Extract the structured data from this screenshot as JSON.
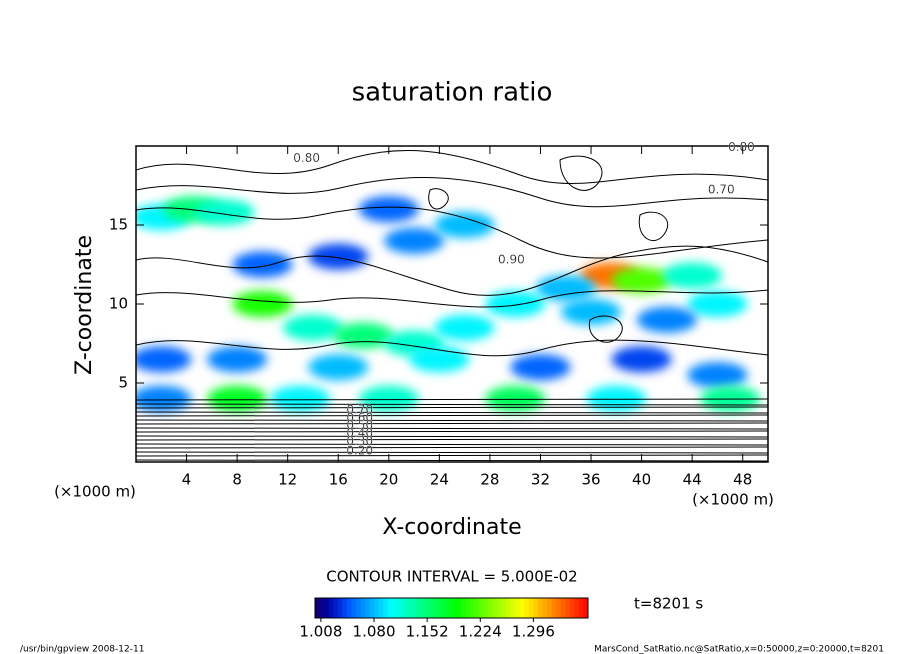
{
  "chart_data": {
    "type": "heatmap",
    "title": "saturation ratio",
    "x_label": "X-coordinate",
    "y_label": "Z-coordinate",
    "x_unit": "(×1000 m)",
    "y_unit": "(×1000 m)",
    "contour_interval": "CONTOUR INTERVAL = 5.000E-02",
    "time_label": "t=8201 s",
    "footer_left": "/usr/bin/gpview  2008-12-11",
    "footer_right": "MarsCond_SatRatio.nc@SatRatio,x=0:50000,z=0:20000,t=8201",
    "xlim": [
      0,
      50
    ],
    "ylim": [
      0,
      20
    ],
    "xticks": [
      4,
      8,
      12,
      16,
      20,
      24,
      28,
      32,
      36,
      40,
      44,
      48
    ],
    "yticks": [
      5,
      10,
      15
    ],
    "clim": [
      1.0,
      1.37
    ],
    "colorbar_ticks": [
      {
        "value": 1.008,
        "label": "1.008"
      },
      {
        "value": 1.08,
        "label": "1.080"
      },
      {
        "value": 1.152,
        "label": "1.152"
      },
      {
        "value": 1.224,
        "label": "1.224"
      },
      {
        "value": 1.296,
        "label": "1.296"
      }
    ],
    "field": [
      {
        "x": 2,
        "y": 15.5,
        "value": 1.1
      },
      {
        "x": 4.5,
        "y": 16,
        "value": 1.15
      },
      {
        "x": 7,
        "y": 15.8,
        "value": 1.12
      },
      {
        "x": 10,
        "y": 10,
        "value": 1.2
      },
      {
        "x": 14,
        "y": 8.5,
        "value": 1.12
      },
      {
        "x": 18,
        "y": 8,
        "value": 1.15
      },
      {
        "x": 22,
        "y": 7.5,
        "value": 1.12
      },
      {
        "x": 26,
        "y": 8.5,
        "value": 1.1
      },
      {
        "x": 37.5,
        "y": 11.8,
        "value": 1.33
      },
      {
        "x": 40,
        "y": 11.5,
        "value": 1.22
      },
      {
        "x": 44,
        "y": 11.8,
        "value": 1.12
      },
      {
        "x": 34,
        "y": 11,
        "value": 1.08
      },
      {
        "x": 30,
        "y": 10,
        "value": 1.1
      },
      {
        "x": 36,
        "y": 9.5,
        "value": 1.08
      },
      {
        "x": 46,
        "y": 10,
        "value": 1.1
      },
      {
        "x": 42,
        "y": 9,
        "value": 1.06
      },
      {
        "x": 2,
        "y": 6.5,
        "value": 1.05
      },
      {
        "x": 8,
        "y": 6.5,
        "value": 1.06
      },
      {
        "x": 16,
        "y": 6,
        "value": 1.08
      },
      {
        "x": 24,
        "y": 6.5,
        "value": 1.1
      },
      {
        "x": 32,
        "y": 6,
        "value": 1.05
      },
      {
        "x": 40,
        "y": 6.5,
        "value": 1.04
      },
      {
        "x": 46,
        "y": 5.5,
        "value": 1.06
      },
      {
        "x": 2,
        "y": 4,
        "value": 1.06
      },
      {
        "x": 8,
        "y": 4,
        "value": 1.18
      },
      {
        "x": 13,
        "y": 4,
        "value": 1.1
      },
      {
        "x": 20,
        "y": 4,
        "value": 1.12
      },
      {
        "x": 30,
        "y": 4,
        "value": 1.16
      },
      {
        "x": 38,
        "y": 4,
        "value": 1.1
      },
      {
        "x": 47,
        "y": 4,
        "value": 1.14
      },
      {
        "x": 10,
        "y": 12.5,
        "value": 1.05
      },
      {
        "x": 16,
        "y": 13,
        "value": 1.04
      },
      {
        "x": 22,
        "y": 14,
        "value": 1.06
      },
      {
        "x": 26,
        "y": 15,
        "value": 1.08
      },
      {
        "x": 20,
        "y": 16,
        "value": 1.05
      }
    ],
    "contour_labels": [
      {
        "x": 13.5,
        "y": 19.2,
        "value": 0.8,
        "label": "0.80"
      },
      {
        "x": 47.9,
        "y": 19.9,
        "value": 0.8,
        "label": "0.80"
      },
      {
        "x": 46.3,
        "y": 17.2,
        "value": 0.7,
        "label": "0.70"
      },
      {
        "x": 29.7,
        "y": 12.8,
        "value": 0.9,
        "label": "0.90"
      },
      {
        "x": 17.7,
        "y": 3.3,
        "value": 0.7,
        "label": "0.70"
      },
      {
        "x": 17.7,
        "y": 2.8,
        "value": 0.6,
        "label": "0.60"
      },
      {
        "x": 17.7,
        "y": 2.3,
        "value": 0.5,
        "label": "0.50"
      },
      {
        "x": 17.7,
        "y": 1.8,
        "value": 0.4,
        "label": "0.40"
      },
      {
        "x": 17.7,
        "y": 1.3,
        "value": 0.3,
        "label": "0.30"
      },
      {
        "x": 17.7,
        "y": 0.7,
        "value": 0.2,
        "label": "0.20"
      }
    ]
  }
}
